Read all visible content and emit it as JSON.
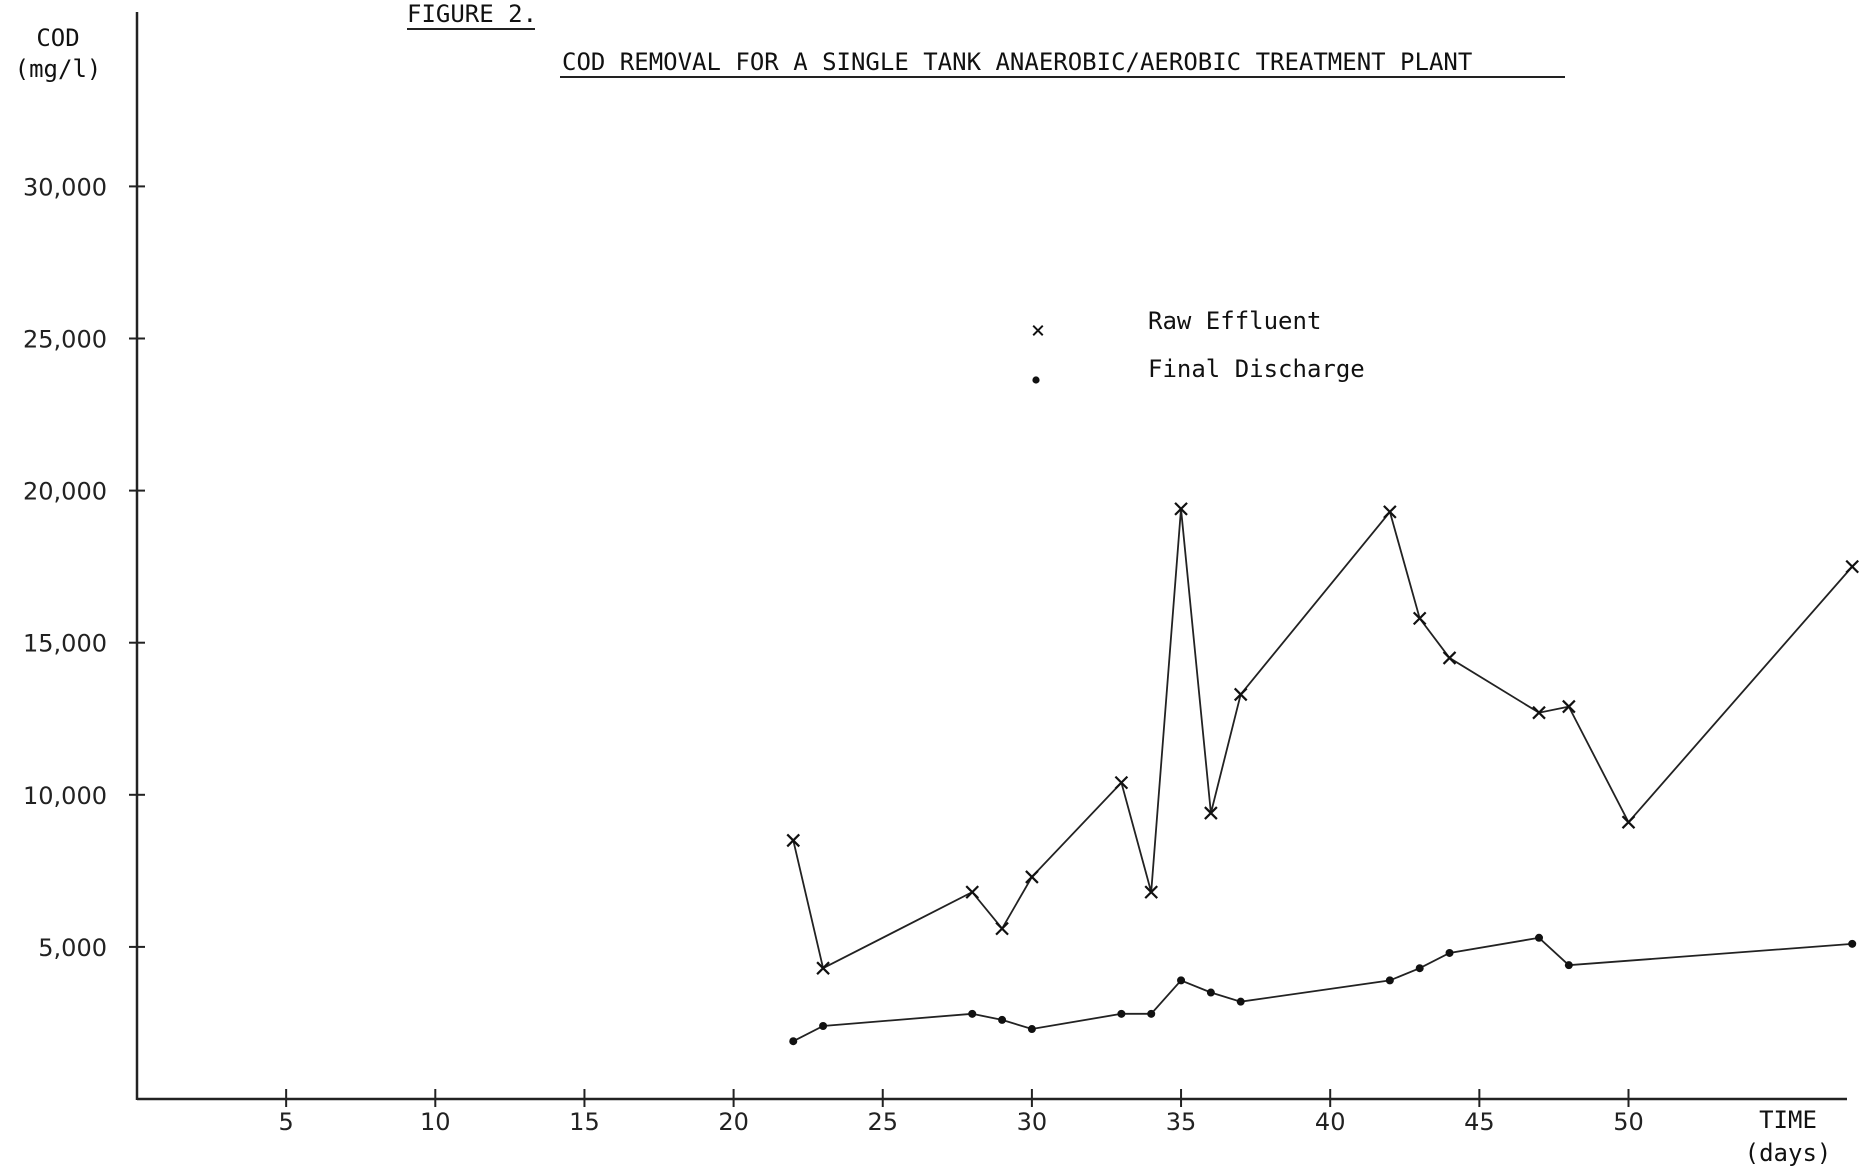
{
  "chart_data": {
    "type": "line",
    "figure_label": "FIGURE 2.",
    "title": "COD REMOVAL FOR A SINGLE TANK ANAEROBIC/AEROBIC TREATMENT PLANT",
    "ylabel_line1": "COD",
    "ylabel_line2": "(mg/l)",
    "xlabel_line1": "TIME",
    "xlabel_line2": "(days)",
    "xlim": [
      0,
      57.5
    ],
    "ylim": [
      0,
      36000
    ],
    "x_ticks": [
      5,
      10,
      15,
      20,
      25,
      30,
      35,
      40,
      45,
      50
    ],
    "x_tick_labels": [
      "5",
      "10",
      "15",
      "20",
      "25",
      "30",
      "35",
      "40",
      "45",
      "50"
    ],
    "y_ticks": [
      5000,
      10000,
      15000,
      20000,
      25000,
      30000
    ],
    "y_tick_labels": [
      "5,000",
      "10,000",
      "15,000",
      "20,000",
      "25,000",
      "30,000"
    ],
    "grid": false,
    "legend_position": "top-center",
    "series": [
      {
        "name": "Raw Effluent",
        "marker": "x",
        "color": "#222222",
        "x": [
          22,
          23,
          28,
          29,
          30,
          33,
          34,
          35,
          36,
          37,
          42,
          43,
          44,
          47,
          48,
          50,
          57.5
        ],
        "y": [
          8500,
          4300,
          6800,
          5600,
          7300,
          10400,
          6800,
          19400,
          9400,
          13300,
          19300,
          15800,
          14500,
          12700,
          12900,
          9100,
          17500
        ]
      },
      {
        "name": "Final Discharge",
        "marker": "dot",
        "color": "#222222",
        "x": [
          22,
          23,
          28,
          29,
          30,
          33,
          34,
          35,
          36,
          37,
          42,
          43,
          44,
          47,
          48,
          57.5
        ],
        "y": [
          1900,
          2400,
          2800,
          2600,
          2300,
          2800,
          2800,
          3900,
          3500,
          3200,
          3900,
          4300,
          4800,
          5300,
          4400,
          5100
        ]
      }
    ]
  }
}
